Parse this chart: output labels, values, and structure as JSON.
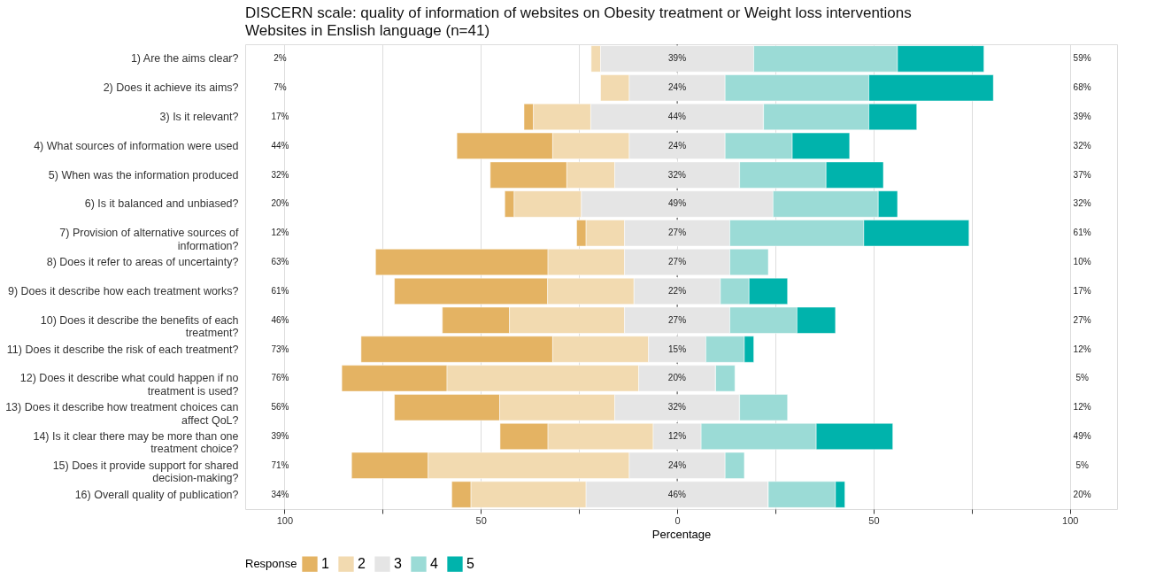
{
  "chart_data": {
    "type": "bar",
    "orientation": "horizontal",
    "title": "DISCERN scale: quality of information of websites on Obesity treatment or Weight loss interventions",
    "subtitle": "Websites in Enslish language (n=41)",
    "xlabel": "Percentage",
    "legend_title": "Response",
    "legend": "bottom",
    "grid": "x",
    "categories": [
      "1) Are the aims clear?",
      "2) Does it achieve its aims?",
      "3) Is it relevant?",
      "4) What sources of information were used",
      "5) When was the information produced",
      "6) Is it balanced and unbiased?",
      "7) Provision of alternative sources of\ninformation?",
      "8) Does it refer to areas of uncertainty?",
      "9) Does it describe how each treatment works?",
      "10) Does it describe the benefits of each\ntreatment?",
      "11) Does it describe the risk of each treatment?",
      "12) Does it describe what could happen if no\ntreatment is used?",
      "13) Does it describe how treatment choices can\naffect QoL?",
      "14) Is it clear there may be more than one\ntreatment choice?",
      "15) Does it provide support for shared\ndecision-making?",
      "16) Overall quality of publication?"
    ],
    "xlim": [
      -110,
      112
    ],
    "xticks": [
      {
        "value": -100,
        "label": "100"
      },
      {
        "value": -75,
        "label": null
      },
      {
        "value": -50,
        "label": "50"
      },
      {
        "value": -25,
        "label": null
      },
      0,
      {
        "value": 25,
        "label": null
      },
      50,
      {
        "value": 75,
        "label": null
      },
      100
    ],
    "ref_lines": [
      {
        "axis": "x",
        "value": 0,
        "color": "#444444",
        "line_style": "dashed"
      }
    ],
    "series": [
      {
        "name": "1",
        "color": "#e4b363",
        "values": [
          null,
          null,
          2.4,
          24.4,
          19.5,
          2.4,
          2.4,
          43.9,
          39.0,
          17.1,
          48.8,
          26.8,
          26.8,
          12.2,
          19.5,
          4.9
        ],
        "base": [
          null,
          null,
          -39.0,
          -56.1,
          -47.6,
          -43.9,
          -25.6,
          -76.8,
          -72.0,
          -59.8,
          -80.5,
          -85.4,
          -72.0,
          -45.1,
          -82.9,
          -57.4
        ]
      },
      {
        "name": "2",
        "color": "#f2dab0",
        "values": [
          2.4,
          7.3,
          14.6,
          19.5,
          12.2,
          17.1,
          9.8,
          19.5,
          22.0,
          29.3,
          24.4,
          48.8,
          29.3,
          26.8,
          51.2,
          29.3
        ],
        "base": [
          -21.9,
          -19.5,
          -36.6,
          -31.7,
          -28.1,
          -41.5,
          -23.2,
          -32.9,
          -33.0,
          -42.7,
          -31.7,
          -58.6,
          -45.2,
          -32.9,
          -63.4,
          -52.5
        ]
      },
      {
        "name": "3",
        "color": "#e5e5e5",
        "values": [
          39.0,
          24.4,
          43.9,
          24.4,
          31.7,
          48.8,
          26.8,
          26.8,
          22.0,
          26.8,
          14.6,
          19.5,
          31.7,
          12.2,
          24.4,
          46.3
        ],
        "base": [
          -19.5,
          -12.2,
          -22.0,
          -12.2,
          -15.9,
          -24.4,
          -13.4,
          -13.4,
          -11.0,
          -13.4,
          -7.3,
          -9.8,
          -15.9,
          -6.1,
          -12.2,
          -23.2
        ],
        "value_labels": [
          "39%",
          "24%",
          "44%",
          "24%",
          "32%",
          "49%",
          "27%",
          "27%",
          "22%",
          "27%",
          "15%",
          "20%",
          "32%",
          "12%",
          "24%",
          "46%"
        ]
      },
      {
        "name": "4",
        "color": "#9bdbd6",
        "values": [
          36.6,
          36.6,
          26.8,
          17.1,
          22.0,
          26.8,
          34.1,
          9.8,
          7.3,
          17.1,
          9.8,
          4.9,
          12.2,
          29.3,
          4.9,
          17.1
        ],
        "base": [
          19.5,
          12.2,
          22.0,
          12.2,
          15.9,
          24.4,
          13.4,
          13.4,
          11.0,
          13.4,
          7.3,
          9.8,
          15.9,
          6.1,
          12.2,
          23.2
        ]
      },
      {
        "name": "5",
        "color": "#00b3ac",
        "values": [
          22.0,
          31.7,
          12.2,
          14.6,
          14.6,
          4.9,
          26.8,
          null,
          9.8,
          9.8,
          2.4,
          null,
          null,
          19.5,
          null,
          2.4
        ],
        "base": [
          56.1,
          48.8,
          48.8,
          29.3,
          37.9,
          51.2,
          47.5,
          null,
          18.3,
          30.5,
          17.1,
          null,
          null,
          35.4,
          null,
          40.3
        ]
      }
    ],
    "annotations": [
      "2%",
      "7%",
      "17%",
      "44%",
      "32%",
      "20%",
      "12%",
      "63%",
      "61%",
      "46%",
      "73%",
      "76%",
      "56%",
      "39%",
      "71%",
      "34%",
      "59%",
      "68%",
      "39%",
      "32%",
      "37%",
      "32%",
      "61%",
      "10%",
      "17%",
      "27%",
      "12%",
      "5%",
      "12%",
      "49%",
      "5%",
      "20%"
    ]
  }
}
